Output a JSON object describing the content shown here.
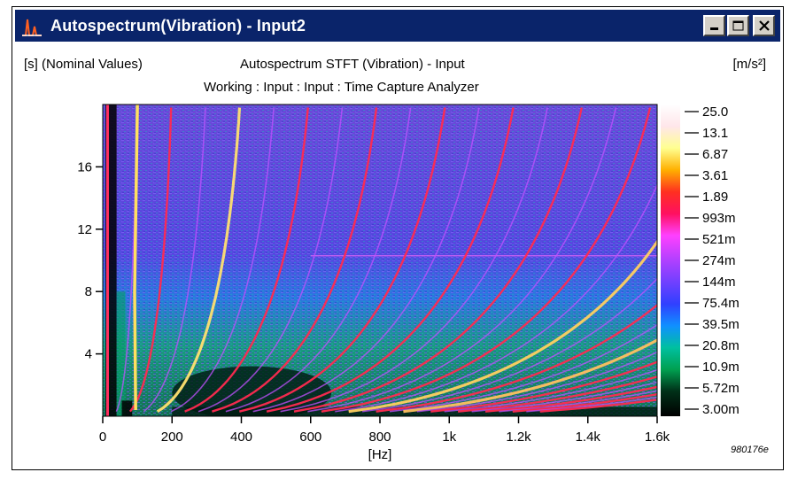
{
  "window": {
    "title": "Autospectrum(Vibration) - Input2",
    "controls": [
      "minimize",
      "maximize",
      "close"
    ],
    "icon": "spectrum-app-icon"
  },
  "header": {
    "left": "[s] (Nominal Values)",
    "title": "Autospectrum STFT (Vibration) - Input",
    "subtitle": "Working : Input : Input : Time Capture Analyzer",
    "unit": "[m/s²]"
  },
  "footer_code": "980176e",
  "chart_data": {
    "type": "heatmap",
    "title": "Autospectrum STFT (Vibration) - Input",
    "subtitle": "Working : Input : Input : Time Capture Analyzer",
    "xlabel": "[Hz]",
    "ylabel": "[s] (Nominal Values)",
    "xlim": [
      0,
      1600
    ],
    "ylim": [
      0,
      20
    ],
    "x_ticks": [
      0,
      200,
      400,
      600,
      800,
      1000,
      1200,
      1400,
      1600
    ],
    "x_tick_labels": [
      "0",
      "200",
      "400",
      "600",
      "800",
      "1k",
      "1.2k",
      "1.4k",
      "1.6k"
    ],
    "y_ticks": [
      4,
      8,
      12,
      16
    ],
    "y_tick_labels": [
      "4",
      "8",
      "12",
      "16"
    ],
    "colorbar": {
      "unit": "[m/s²]",
      "scale": "log",
      "labels": [
        "25.0",
        "13.1",
        "6.87",
        "3.61",
        "1.89",
        "993m",
        "521m",
        "274m",
        "144m",
        "75.4m",
        "39.5m",
        "20.8m",
        "10.9m",
        "5.72m",
        "3.00m"
      ],
      "colors": [
        "#ffffff",
        "#ffe0e8",
        "#ffff80",
        "#ffc000",
        "#ff4040",
        "#ff0030",
        "#ff40ff",
        "#c040ff",
        "#8040ff",
        "#4040ff",
        "#2080ff",
        "#00c0a0",
        "#00a060",
        "#004020",
        "#000000"
      ]
    },
    "grid": false
  }
}
